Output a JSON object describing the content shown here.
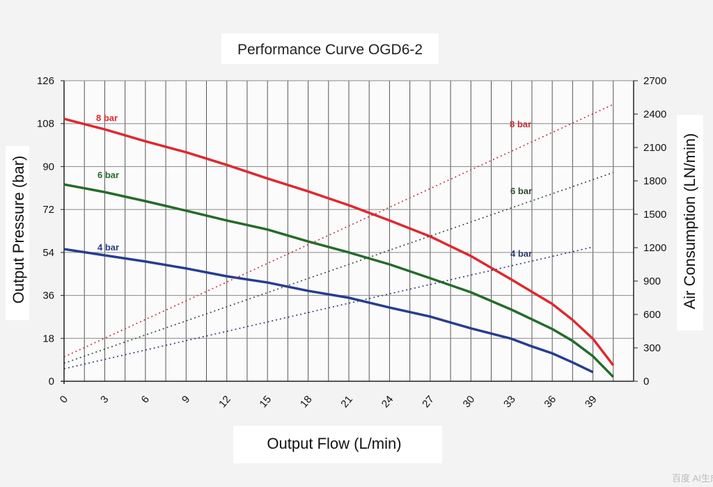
{
  "chart_data": {
    "type": "line",
    "title": "Performance Curve OGD6-2",
    "xlabel": "Output Flow (L/min)",
    "ylabel": "Output Pressure (bar)",
    "y2label": "Air Consumption  (LN/min)",
    "xlim": [
      0,
      42
    ],
    "ylim": [
      0,
      126
    ],
    "y2lim": [
      0,
      2700
    ],
    "xticks": [
      0,
      3,
      6,
      9,
      12,
      15,
      18,
      21,
      24,
      27,
      30,
      33,
      36,
      39
    ],
    "yticks": [
      0,
      18,
      36,
      54,
      72,
      90,
      108,
      126
    ],
    "y2ticks": [
      0,
      300,
      600,
      900,
      1200,
      1500,
      1800,
      2100,
      2400,
      2700
    ],
    "grid": true,
    "series": [
      {
        "name": "8 bar",
        "axis": "left",
        "style": "solid",
        "color": "#e0272e",
        "x": [
          0,
          3,
          6,
          9,
          12,
          15,
          18,
          21,
          24,
          27,
          30,
          33,
          36,
          37.5,
          39,
          40.5
        ],
        "y": [
          110,
          105.6,
          100.6,
          96,
          90.7,
          85,
          79.6,
          73.8,
          67.4,
          60.7,
          52.5,
          42.6,
          32.4,
          25.7,
          17.8,
          6.7
        ]
      },
      {
        "name": "6 bar",
        "axis": "left",
        "style": "solid",
        "color": "#246b2a",
        "x": [
          0,
          3,
          6,
          9,
          12,
          15,
          18,
          21,
          24,
          27,
          30,
          33,
          36,
          37.5,
          39,
          40.5
        ],
        "y": [
          82.5,
          79.3,
          75.5,
          71.5,
          67.4,
          63.6,
          58.6,
          54,
          49,
          43.2,
          37.3,
          30,
          21.9,
          16.9,
          10.5,
          1.8
        ]
      },
      {
        "name": "4 bar",
        "axis": "left",
        "style": "solid",
        "color": "#263d8f",
        "x": [
          0,
          3,
          6,
          9,
          12,
          15,
          18,
          21,
          24,
          27,
          30,
          33,
          34.5,
          36,
          37.5,
          39
        ],
        "y": [
          55.4,
          52.8,
          50.2,
          47.3,
          44,
          41.4,
          37.9,
          35,
          30.9,
          27.1,
          22.2,
          17.8,
          14.6,
          11.7,
          7.9,
          3.8
        ]
      },
      {
        "name": "8 bar",
        "axis": "right",
        "style": "dotted",
        "color": "#c0303a",
        "x": [
          0,
          40.5
        ],
        "y": [
          219,
          2487
        ]
      },
      {
        "name": "6 bar",
        "axis": "right",
        "style": "dotted",
        "color": "#2c4a2e",
        "x": [
          0,
          40.5
        ],
        "y": [
          162,
          1875
        ]
      },
      {
        "name": "4 bar",
        "axis": "right",
        "style": "dotted",
        "color": "#2a3a70",
        "x": [
          0,
          39
        ],
        "y": [
          112,
          1206
        ]
      }
    ]
  },
  "watermark": "百度 AI生成"
}
